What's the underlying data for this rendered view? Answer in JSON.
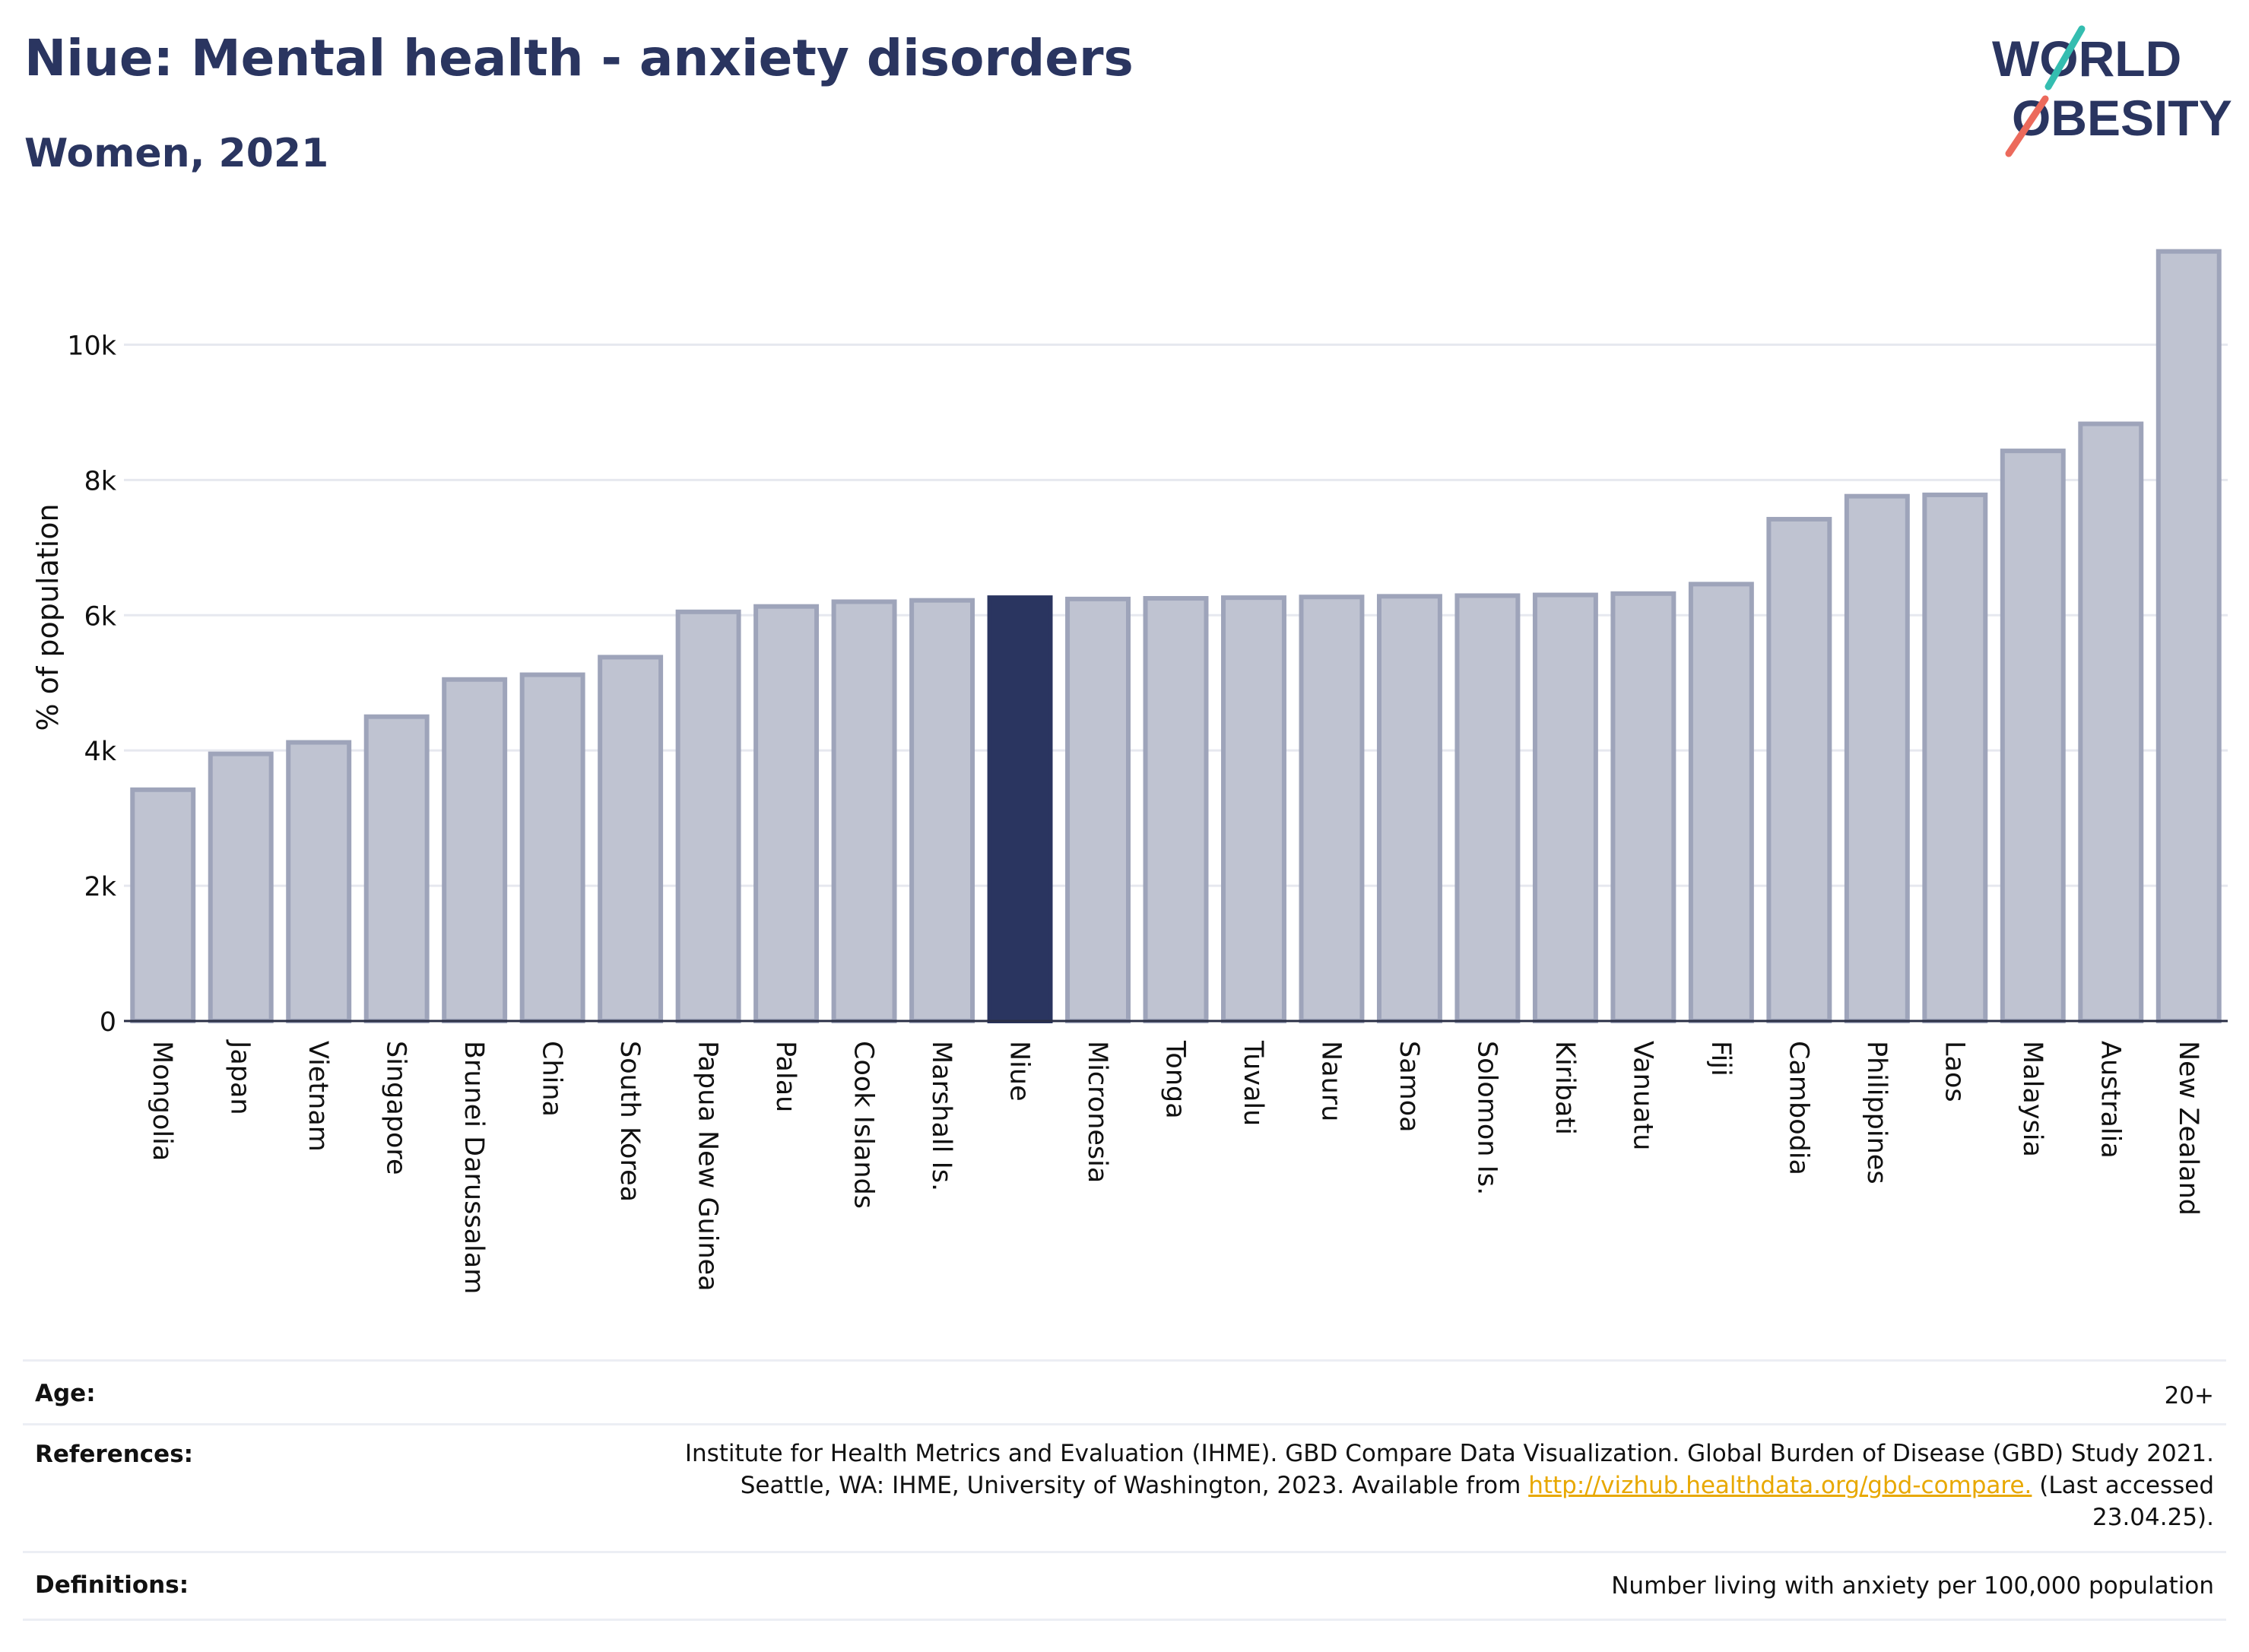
{
  "header": {
    "title": "Niue: Mental health - anxiety disorders",
    "subtitle": "Women, 2021"
  },
  "logo": {
    "line1": "WORLD",
    "line2": "OBESITY"
  },
  "colors": {
    "highlight": "#2a3560",
    "bar_fill": "#bfc3d1",
    "bar_stroke": "#9ea4ba",
    "logo_teal": "#34bdb0",
    "logo_coral": "#ec6a5c",
    "link": "#e8a800"
  },
  "chart_data": {
    "type": "bar",
    "ylabel": "% of population",
    "ylim": [
      0,
      11500
    ],
    "yticks": [
      0,
      2000,
      4000,
      6000,
      8000,
      10000
    ],
    "ytick_labels": [
      "0",
      "2k",
      "4k",
      "6k",
      "8k",
      "10k"
    ],
    "grid": true,
    "highlight": "Niue",
    "categories": [
      "Mongolia",
      "Japan",
      "Vietnam",
      "Singapore",
      "Brunei Darussalam",
      "China",
      "South Korea",
      "Papua New Guinea",
      "Palau",
      "Cook Islands",
      "Marshall Is.",
      "Niue",
      "Micronesia",
      "Tonga",
      "Tuvalu",
      "Nauru",
      "Samoa",
      "Solomon Is.",
      "Kiribati",
      "Vanuatu",
      "Fiji",
      "Cambodia",
      "Philippines",
      "Laos",
      "Malaysia",
      "Australia",
      "New Zealand"
    ],
    "values": [
      3420,
      3950,
      4120,
      4500,
      5050,
      5120,
      5380,
      6050,
      6130,
      6200,
      6220,
      6260,
      6240,
      6250,
      6260,
      6270,
      6280,
      6290,
      6300,
      6320,
      6460,
      7420,
      7760,
      7780,
      8430,
      8830,
      11380
    ]
  },
  "info": {
    "age_label": "Age:",
    "age_value": "20+",
    "references_label": "References:",
    "references_line1": "Institute for Health Metrics and Evaluation (IHME). GBD Compare Data Visualization. Global Burden of Disease (GBD) Study 2021.",
    "references_line2_pre": "Seattle, WA: IHME, University of Washington, 2023. Available from ",
    "references_link": "http://vizhub.healthdata.org/gbd-compare.",
    "references_line2_post": " (Last accessed",
    "references_line3": "23.04.25).",
    "definitions_label": "Definitions:",
    "definitions_value": "Number living with anxiety per 100,000 population"
  }
}
